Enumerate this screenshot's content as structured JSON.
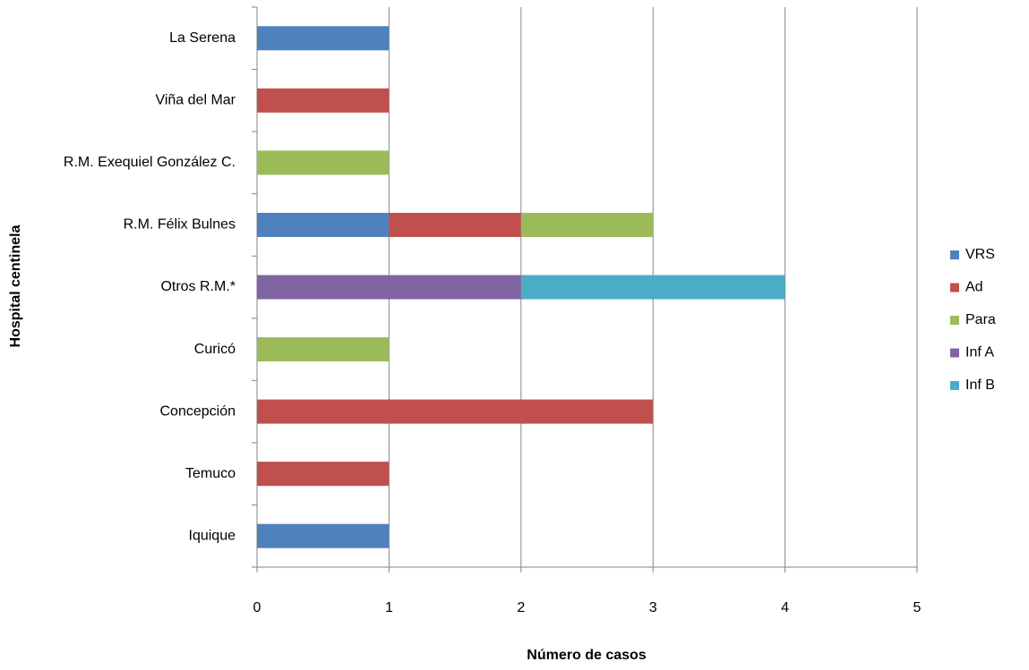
{
  "chart_data": {
    "type": "stacked-barh",
    "x_label": "Número de casos",
    "y_label": "Hospital centinela",
    "categories": [
      "La Serena",
      "Viña del Mar",
      "R.M. Exequiel González C.",
      "R.M. Félix Bulnes",
      "Otros R.M.*",
      "Curicó",
      "Concepción",
      "Temuco",
      "Iquique"
    ],
    "series": [
      {
        "name": "VRS",
        "color": "#4f81bd",
        "values": [
          1,
          0,
          0,
          1,
          0,
          0,
          0,
          0,
          1
        ]
      },
      {
        "name": "Ad",
        "color": "#c0504d",
        "values": [
          0,
          1,
          0,
          1,
          0,
          0,
          3,
          1,
          0
        ]
      },
      {
        "name": "Para",
        "color": "#9bbb59",
        "values": [
          0,
          0,
          1,
          1,
          0,
          1,
          0,
          0,
          0
        ]
      },
      {
        "name": "Inf A",
        "color": "#8064a2",
        "values": [
          0,
          0,
          0,
          0,
          2,
          0,
          0,
          0,
          0
        ]
      },
      {
        "name": "Inf B",
        "color": "#4bacc6",
        "values": [
          0,
          0,
          0,
          0,
          2,
          0,
          0,
          0,
          0
        ]
      }
    ],
    "xlim": [
      0,
      5
    ],
    "xticks": [
      0,
      1,
      2,
      3,
      4,
      5
    ],
    "grid": true,
    "legend": "right"
  }
}
